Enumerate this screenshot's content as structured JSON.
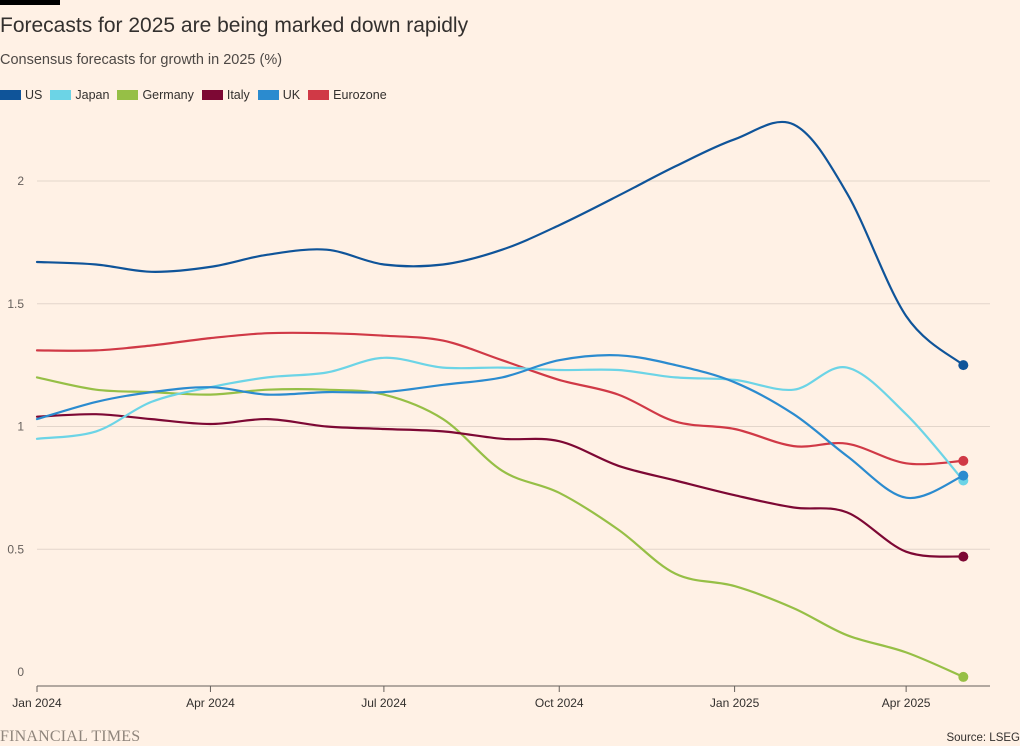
{
  "title": "Forecasts for 2025 are being marked down rapidly",
  "subtitle": "Consensus forecasts for growth in 2025 (%)",
  "footer": {
    "brand": "FINANCIAL TIMES",
    "source": "Source: LSEG"
  },
  "chart_data": {
    "type": "line",
    "title": "Forecasts for 2025 are being marked down rapidly",
    "subtitle": "Consensus forecasts for growth in 2025 (%)",
    "xlabel": "",
    "ylabel": "",
    "ylim": [
      0,
      2.2
    ],
    "yticks": [
      0,
      0.5,
      1,
      1.5,
      2
    ],
    "ytick_labels": [
      "0",
      "0.5",
      "1",
      "1.5",
      "2"
    ],
    "xlim": [
      "2024-01-01",
      "2025-05-15"
    ],
    "xticks": [
      "2024-01-01",
      "2024-04-01",
      "2024-07-01",
      "2024-10-01",
      "2025-01-01",
      "2025-04-01"
    ],
    "xtick_labels": [
      "Jan 2024",
      "Apr 2024",
      "Jul 2024",
      "Oct 2024",
      "Jan 2025",
      "Apr 2025"
    ],
    "grid": "horizontal",
    "legend": "top-left",
    "series": [
      {
        "name": "US",
        "color": "#0F5499",
        "points": [
          [
            "2024-01-01",
            1.67
          ],
          [
            "2024-02-01",
            1.66
          ],
          [
            "2024-03-01",
            1.63
          ],
          [
            "2024-04-01",
            1.65
          ],
          [
            "2024-05-01",
            1.7
          ],
          [
            "2024-06-01",
            1.72
          ],
          [
            "2024-07-01",
            1.66
          ],
          [
            "2024-08-01",
            1.66
          ],
          [
            "2024-09-01",
            1.72
          ],
          [
            "2024-10-01",
            1.82
          ],
          [
            "2024-11-01",
            1.94
          ],
          [
            "2024-12-01",
            2.06
          ],
          [
            "2025-01-01",
            2.17
          ],
          [
            "2025-02-01",
            2.23
          ],
          [
            "2025-03-01",
            1.95
          ],
          [
            "2025-04-01",
            1.45
          ],
          [
            "2025-05-01",
            1.25
          ]
        ]
      },
      {
        "name": "Japan",
        "color": "#6CD4E6",
        "points": [
          [
            "2024-01-01",
            0.95
          ],
          [
            "2024-02-01",
            0.98
          ],
          [
            "2024-03-01",
            1.1
          ],
          [
            "2024-04-01",
            1.16
          ],
          [
            "2024-05-01",
            1.2
          ],
          [
            "2024-06-01",
            1.22
          ],
          [
            "2024-07-01",
            1.28
          ],
          [
            "2024-08-01",
            1.24
          ],
          [
            "2024-09-01",
            1.24
          ],
          [
            "2024-10-01",
            1.23
          ],
          [
            "2024-11-01",
            1.23
          ],
          [
            "2024-12-01",
            1.2
          ],
          [
            "2025-01-01",
            1.19
          ],
          [
            "2025-02-01",
            1.15
          ],
          [
            "2025-03-01",
            1.24
          ],
          [
            "2025-04-01",
            1.05
          ],
          [
            "2025-05-01",
            0.78
          ]
        ]
      },
      {
        "name": "Germany",
        "color": "#96BF46",
        "points": [
          [
            "2024-01-01",
            1.2
          ],
          [
            "2024-02-01",
            1.15
          ],
          [
            "2024-03-01",
            1.14
          ],
          [
            "2024-04-01",
            1.13
          ],
          [
            "2024-05-01",
            1.15
          ],
          [
            "2024-06-01",
            1.15
          ],
          [
            "2024-07-01",
            1.13
          ],
          [
            "2024-08-01",
            1.03
          ],
          [
            "2024-09-01",
            0.82
          ],
          [
            "2024-10-01",
            0.73
          ],
          [
            "2024-11-01",
            0.58
          ],
          [
            "2024-12-01",
            0.4
          ],
          [
            "2025-01-01",
            0.35
          ],
          [
            "2025-02-01",
            0.26
          ],
          [
            "2025-03-01",
            0.15
          ],
          [
            "2025-04-01",
            0.08
          ],
          [
            "2025-05-01",
            -0.02
          ]
        ]
      },
      {
        "name": "Italy",
        "color": "#7D0834",
        "points": [
          [
            "2024-01-01",
            1.04
          ],
          [
            "2024-02-01",
            1.05
          ],
          [
            "2024-03-01",
            1.03
          ],
          [
            "2024-04-01",
            1.01
          ],
          [
            "2024-05-01",
            1.03
          ],
          [
            "2024-06-01",
            1.0
          ],
          [
            "2024-07-01",
            0.99
          ],
          [
            "2024-08-01",
            0.98
          ],
          [
            "2024-09-01",
            0.95
          ],
          [
            "2024-10-01",
            0.94
          ],
          [
            "2024-11-01",
            0.84
          ],
          [
            "2024-12-01",
            0.78
          ],
          [
            "2025-01-01",
            0.72
          ],
          [
            "2025-02-01",
            0.67
          ],
          [
            "2025-03-01",
            0.65
          ],
          [
            "2025-04-01",
            0.49
          ],
          [
            "2025-05-01",
            0.47
          ]
        ]
      },
      {
        "name": "UK",
        "color": "#2B8BCF",
        "points": [
          [
            "2024-01-01",
            1.03
          ],
          [
            "2024-02-01",
            1.1
          ],
          [
            "2024-03-01",
            1.14
          ],
          [
            "2024-04-01",
            1.16
          ],
          [
            "2024-05-01",
            1.13
          ],
          [
            "2024-06-01",
            1.14
          ],
          [
            "2024-07-01",
            1.14
          ],
          [
            "2024-08-01",
            1.17
          ],
          [
            "2024-09-01",
            1.2
          ],
          [
            "2024-10-01",
            1.27
          ],
          [
            "2024-11-01",
            1.29
          ],
          [
            "2024-12-01",
            1.25
          ],
          [
            "2025-01-01",
            1.18
          ],
          [
            "2025-02-01",
            1.05
          ],
          [
            "2025-03-01",
            0.88
          ],
          [
            "2025-04-01",
            0.71
          ],
          [
            "2025-05-01",
            0.8
          ]
        ]
      },
      {
        "name": "Eurozone",
        "color": "#D03946",
        "points": [
          [
            "2024-01-01",
            1.31
          ],
          [
            "2024-02-01",
            1.31
          ],
          [
            "2024-03-01",
            1.33
          ],
          [
            "2024-04-01",
            1.36
          ],
          [
            "2024-05-01",
            1.38
          ],
          [
            "2024-06-01",
            1.38
          ],
          [
            "2024-07-01",
            1.37
          ],
          [
            "2024-08-01",
            1.35
          ],
          [
            "2024-09-01",
            1.27
          ],
          [
            "2024-10-01",
            1.19
          ],
          [
            "2024-11-01",
            1.13
          ],
          [
            "2024-12-01",
            1.02
          ],
          [
            "2025-01-01",
            0.99
          ],
          [
            "2025-02-01",
            0.92
          ],
          [
            "2025-03-01",
            0.93
          ],
          [
            "2025-04-01",
            0.85
          ],
          [
            "2025-05-01",
            0.86
          ]
        ]
      }
    ]
  }
}
